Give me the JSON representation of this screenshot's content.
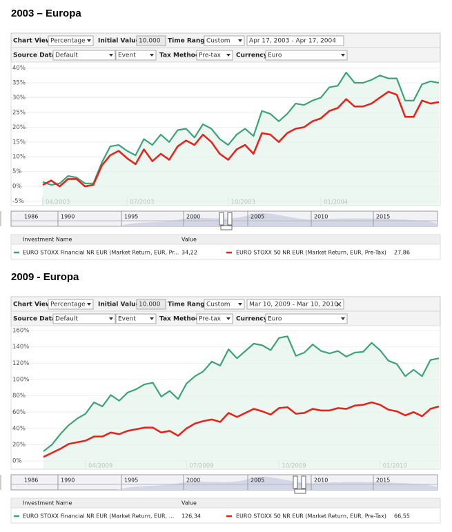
{
  "panels": [
    {
      "heading": "2003 – Europa",
      "toolbar": {
        "chart_view_label": "Chart View",
        "chart_view": "Percentage",
        "initial_value_label": "Initial Value",
        "initial_value": "10.000",
        "time_range_label": "Time Range",
        "time_range": "Custom",
        "date_range": "Apr 17, 2003 - Apr 17, 2004",
        "source_data_label": "Source Data",
        "source_data": "Default",
        "event": "Event",
        "tax_method_label": "Tax Method",
        "tax_method": "Pre-tax",
        "currency_label": "Currency",
        "currency": "Euro"
      },
      "navigator": [
        "1986",
        "1990",
        "1995",
        "2000",
        "2005",
        "2010",
        "2015"
      ],
      "table": {
        "name_header": "Investment Name",
        "value_header": "Value",
        "values": [
          "34,22",
          "27,86"
        ]
      }
    },
    {
      "heading": "2009 - Europa",
      "toolbar": {
        "chart_view_label": "Chart View",
        "chart_view": "Percentage",
        "initial_value_label": "Initial Value",
        "initial_value": "10.000",
        "time_range_label": "Time Range",
        "time_range": "Custom",
        "date_range": "Mar 10, 2009 - Mar 10, 2010",
        "source_data_label": "Source Data",
        "source_data": "Default",
        "event": "Event",
        "tax_method_label": "Tax Method",
        "tax_method": "Pre-tax",
        "currency_label": "Currency",
        "currency": "Euro"
      },
      "navigator": [
        "1986",
        "1990",
        "1995",
        "2000",
        "2005",
        "2010",
        "2015"
      ],
      "table": {
        "name_header": "Investment Name",
        "value_header": "Value",
        "values": [
          "126,34",
          "66,55"
        ]
      }
    }
  ],
  "chart_data": [
    {
      "type": "line",
      "categories": [
        "04/2003",
        null,
        null,
        null,
        null,
        null,
        null,
        null,
        null,
        null,
        "07/2003",
        null,
        null,
        null,
        null,
        null,
        null,
        null,
        null,
        null,
        null,
        null,
        "10/2003",
        null,
        null,
        null,
        null,
        null,
        null,
        null,
        null,
        null,
        null,
        "01/2004",
        null,
        null,
        null,
        null,
        null,
        null,
        null,
        null,
        null,
        null,
        null,
        null,
        null,
        null
      ],
      "series": [
        {
          "name": "EURO STOXX Financial NR EUR (Market Return, EUR, Pr...",
          "color": "#3ba27a",
          "values": [
            1.5,
            0.5,
            1,
            3.5,
            3,
            1,
            1,
            8,
            13.5,
            14,
            12,
            10.5,
            16,
            14,
            17.5,
            15,
            19,
            19.5,
            16.5,
            21,
            19.5,
            16,
            14,
            17.5,
            19.5,
            17,
            25.5,
            24.5,
            22,
            24.5,
            28,
            27.5,
            29,
            30,
            33.5,
            34,
            38.5,
            35,
            35,
            36,
            37.5,
            36.5,
            36.5,
            29,
            29,
            34.5,
            35.5,
            35
          ]
        },
        {
          "name": "EURO STOXX 50 NR EUR (Market Return, EUR, Pre-Tax)",
          "color": "#e5251c",
          "values": [
            0.5,
            2,
            0,
            2.5,
            2.5,
            0,
            0.5,
            7,
            10.5,
            12,
            9.5,
            7.5,
            12.5,
            8.5,
            11,
            9,
            13.5,
            15.5,
            14,
            17.5,
            15,
            11,
            9,
            12.5,
            14,
            11,
            18,
            17.5,
            15,
            18,
            19.5,
            20,
            22,
            23,
            25.5,
            26.5,
            29.5,
            27,
            27,
            28,
            30,
            32,
            31,
            23.5,
            23.5,
            29,
            28,
            28.5
          ]
        }
      ],
      "ylim": [
        -6.5,
        42
      ],
      "yticks": [
        {
          "value": 40,
          "label": "40%"
        },
        {
          "value": 35,
          "label": "35%"
        },
        {
          "value": 30,
          "label": "30%"
        },
        {
          "value": 25,
          "label": "25%"
        },
        {
          "value": 20,
          "label": "20%"
        },
        {
          "value": 15,
          "label": "15%"
        },
        {
          "value": 10,
          "label": "10%"
        },
        {
          "value": 5,
          "label": "5%"
        },
        {
          "value": 0,
          "label": "0%"
        },
        {
          "value": -5,
          "label": "-5%"
        }
      ],
      "grid": true
    },
    {
      "type": "line",
      "categories": [
        null,
        null,
        null,
        null,
        null,
        "04/2009",
        null,
        null,
        null,
        null,
        null,
        null,
        null,
        null,
        null,
        null,
        null,
        "07/2009",
        null,
        null,
        null,
        null,
        null,
        null,
        null,
        null,
        null,
        null,
        "10/2009",
        null,
        null,
        null,
        null,
        null,
        null,
        null,
        null,
        null,
        null,
        null,
        "01/2010",
        null,
        null,
        null,
        null,
        null,
        null,
        null
      ],
      "series": [
        {
          "name": "EURO STOXX Financial NR EUR (Market Return, EUR, ...",
          "color": "#3ba27a",
          "values": [
            12,
            20,
            33,
            44,
            52,
            58,
            72,
            67,
            81,
            74,
            84,
            88,
            94,
            96,
            79,
            86,
            76,
            95,
            104,
            110,
            122,
            117,
            137,
            126,
            135,
            144,
            142,
            136,
            151,
            153,
            129,
            133,
            143,
            135,
            132,
            135,
            128,
            133,
            134,
            145,
            136,
            123,
            119,
            104,
            112,
            104,
            124,
            126
          ]
        },
        {
          "name": "EURO STOXX 50 NR EUR (Market Return, EUR, Pre-Tax)",
          "color": "#e5251c",
          "values": [
            5,
            10,
            15,
            21,
            23,
            25,
            30,
            30,
            35,
            33,
            37,
            39,
            41,
            41,
            35,
            37,
            31,
            40,
            46,
            49,
            51,
            48,
            59,
            54,
            59,
            64,
            61,
            57,
            65,
            66,
            58,
            59,
            64,
            62,
            62,
            65,
            64,
            68,
            69,
            72,
            69,
            63,
            61,
            56,
            60,
            55,
            64,
            67
          ]
        }
      ],
      "ylim": [
        -10,
        166
      ],
      "yticks": [
        {
          "value": 160,
          "label": "160%"
        },
        {
          "value": 140,
          "label": "140%"
        },
        {
          "value": 120,
          "label": "120%"
        },
        {
          "value": 100,
          "label": "100%"
        },
        {
          "value": 80,
          "label": "80%"
        },
        {
          "value": 60,
          "label": "60%"
        },
        {
          "value": 40,
          "label": "40%"
        },
        {
          "value": 20,
          "label": "20%"
        },
        {
          "value": 0,
          "label": "0%"
        }
      ],
      "grid": true
    }
  ]
}
